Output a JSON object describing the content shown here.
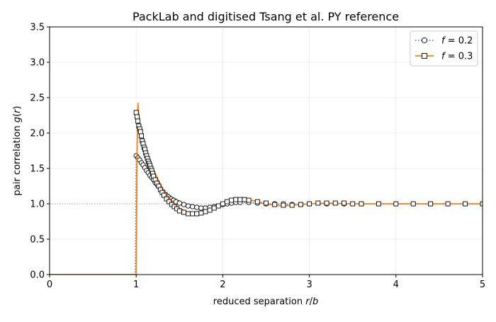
{
  "chart_data": {
    "type": "line",
    "title": "PackLab and digitised Tsang et al. PY reference",
    "xlabel": "reduced separation r/b",
    "ylabel": "pair correlation g(r)",
    "xlim": [
      0,
      5
    ],
    "ylim": [
      0,
      3.5
    ],
    "xticks": [
      "0",
      "1",
      "2",
      "3",
      "4",
      "5"
    ],
    "yticks": [
      "0.0",
      "0.5",
      "1.0",
      "1.5",
      "2.0",
      "2.5",
      "3.0",
      "3.5"
    ],
    "legend_position": "top-right",
    "reference_line": {
      "y": 1.0,
      "style": "dotted",
      "color": "#aaaaaa"
    },
    "series": [
      {
        "name": "f = 0.2",
        "legend_label_math": {
          "var": "f",
          "rest": " = 0.2"
        },
        "color": "#1f77b4",
        "line_style": "dotted",
        "marker": "circle",
        "line_x": [
          0.0,
          0.99,
          1.0,
          1.01,
          1.05,
          1.1,
          1.15,
          1.2,
          1.25,
          1.3,
          1.35,
          1.4,
          1.5,
          1.6,
          1.7,
          1.8,
          1.9,
          2.0,
          2.1,
          2.2,
          2.3,
          2.4,
          2.5,
          2.6,
          2.8,
          3.0,
          3.2,
          3.5,
          4.0,
          4.5,
          5.0
        ],
        "line_y": [
          0.0,
          0.0,
          1.7,
          1.67,
          1.6,
          1.52,
          1.44,
          1.36,
          1.29,
          1.22,
          1.16,
          1.11,
          1.04,
          0.98,
          0.95,
          0.94,
          0.95,
          0.98,
          1.0,
          1.02,
          1.02,
          1.01,
          1.0,
          1.0,
          0.99,
          1.0,
          1.0,
          1.0,
          1.0,
          1.0,
          1.0
        ],
        "points_x": [
          1.0,
          1.02,
          1.04,
          1.06,
          1.08,
          1.1,
          1.12,
          1.14,
          1.16,
          1.18,
          1.2,
          1.22,
          1.25,
          1.28,
          1.31,
          1.34,
          1.37,
          1.4,
          1.43,
          1.46,
          1.5,
          1.55,
          1.6,
          1.65,
          1.7,
          1.75,
          1.8,
          1.85,
          1.9,
          1.95,
          2.0,
          2.05,
          2.1,
          2.15,
          2.2,
          2.3,
          2.4,
          2.5,
          2.6,
          2.7,
          2.8,
          2.9,
          3.0,
          3.2,
          3.4,
          3.6,
          3.8,
          4.0,
          4.2,
          4.4,
          4.6,
          4.8,
          5.0
        ],
        "points_y": [
          1.68,
          1.65,
          1.62,
          1.58,
          1.55,
          1.51,
          1.47,
          1.44,
          1.4,
          1.37,
          1.34,
          1.3,
          1.26,
          1.21,
          1.17,
          1.13,
          1.1,
          1.07,
          1.05,
          1.03,
          1.01,
          0.99,
          0.97,
          0.96,
          0.95,
          0.94,
          0.94,
          0.95,
          0.96,
          0.97,
          0.99,
          1.0,
          1.01,
          1.02,
          1.02,
          1.02,
          1.01,
          1.0,
          1.0,
          1.0,
          0.99,
          0.99,
          1.0,
          1.0,
          1.0,
          1.0,
          1.0,
          1.0,
          1.0,
          1.0,
          1.0,
          1.0,
          1.0
        ]
      },
      {
        "name": "f = 0.3",
        "legend_label_math": {
          "var": "f",
          "rest": " = 0.3"
        },
        "color": "#ff7f0e",
        "line_style": "solid",
        "marker": "square",
        "line_x": [
          0.0,
          0.99,
          1.0,
          1.01,
          1.02,
          1.03,
          1.05,
          1.1,
          1.15,
          1.2,
          1.25,
          1.3,
          1.35,
          1.4,
          1.45,
          1.5,
          1.6,
          1.7,
          1.8,
          1.9,
          2.0,
          2.1,
          2.2,
          2.3,
          2.4,
          2.5,
          2.6,
          2.7,
          2.8,
          3.0,
          3.2,
          3.5,
          4.0,
          4.5,
          5.0
        ],
        "line_y": [
          0.0,
          0.0,
          0.0,
          1.7,
          2.42,
          2.25,
          2.05,
          1.82,
          1.64,
          1.48,
          1.35,
          1.23,
          1.13,
          1.06,
          0.99,
          0.94,
          0.88,
          0.86,
          0.88,
          0.93,
          1.0,
          1.05,
          1.07,
          1.06,
          1.03,
          1.0,
          0.98,
          0.97,
          0.98,
          1.0,
          1.01,
          1.0,
          1.0,
          1.0,
          1.0
        ],
        "points_x": [
          1.0,
          1.01,
          1.02,
          1.03,
          1.04,
          1.05,
          1.06,
          1.07,
          1.08,
          1.09,
          1.1,
          1.11,
          1.12,
          1.13,
          1.14,
          1.15,
          1.16,
          1.17,
          1.18,
          1.19,
          1.2,
          1.22,
          1.24,
          1.26,
          1.28,
          1.3,
          1.32,
          1.35,
          1.38,
          1.41,
          1.44,
          1.47,
          1.5,
          1.55,
          1.6,
          1.65,
          1.7,
          1.75,
          1.8,
          1.85,
          1.9,
          1.95,
          2.0,
          2.05,
          2.1,
          2.15,
          2.2,
          2.25,
          2.3,
          2.4,
          2.5,
          2.6,
          2.7,
          2.8,
          2.9,
          3.0,
          3.1,
          3.2,
          3.3,
          3.4,
          3.5,
          3.6,
          3.8,
          4.0,
          4.2,
          4.4,
          4.6,
          4.8,
          5.0
        ],
        "points_y": [
          2.29,
          2.23,
          2.17,
          2.1,
          2.06,
          2.02,
          1.96,
          1.89,
          1.85,
          1.8,
          1.77,
          1.72,
          1.68,
          1.64,
          1.6,
          1.57,
          1.54,
          1.5,
          1.47,
          1.43,
          1.39,
          1.34,
          1.29,
          1.25,
          1.2,
          1.16,
          1.12,
          1.07,
          1.03,
          0.99,
          0.96,
          0.93,
          0.9,
          0.88,
          0.86,
          0.86,
          0.86,
          0.87,
          0.89,
          0.91,
          0.94,
          0.97,
          1.0,
          1.03,
          1.05,
          1.06,
          1.06,
          1.06,
          1.05,
          1.03,
          1.01,
          0.99,
          0.98,
          0.98,
          0.99,
          1.0,
          1.01,
          1.01,
          1.01,
          1.01,
          1.0,
          1.0,
          1.0,
          1.0,
          1.0,
          1.0,
          1.0,
          1.0,
          1.0
        ]
      }
    ]
  }
}
